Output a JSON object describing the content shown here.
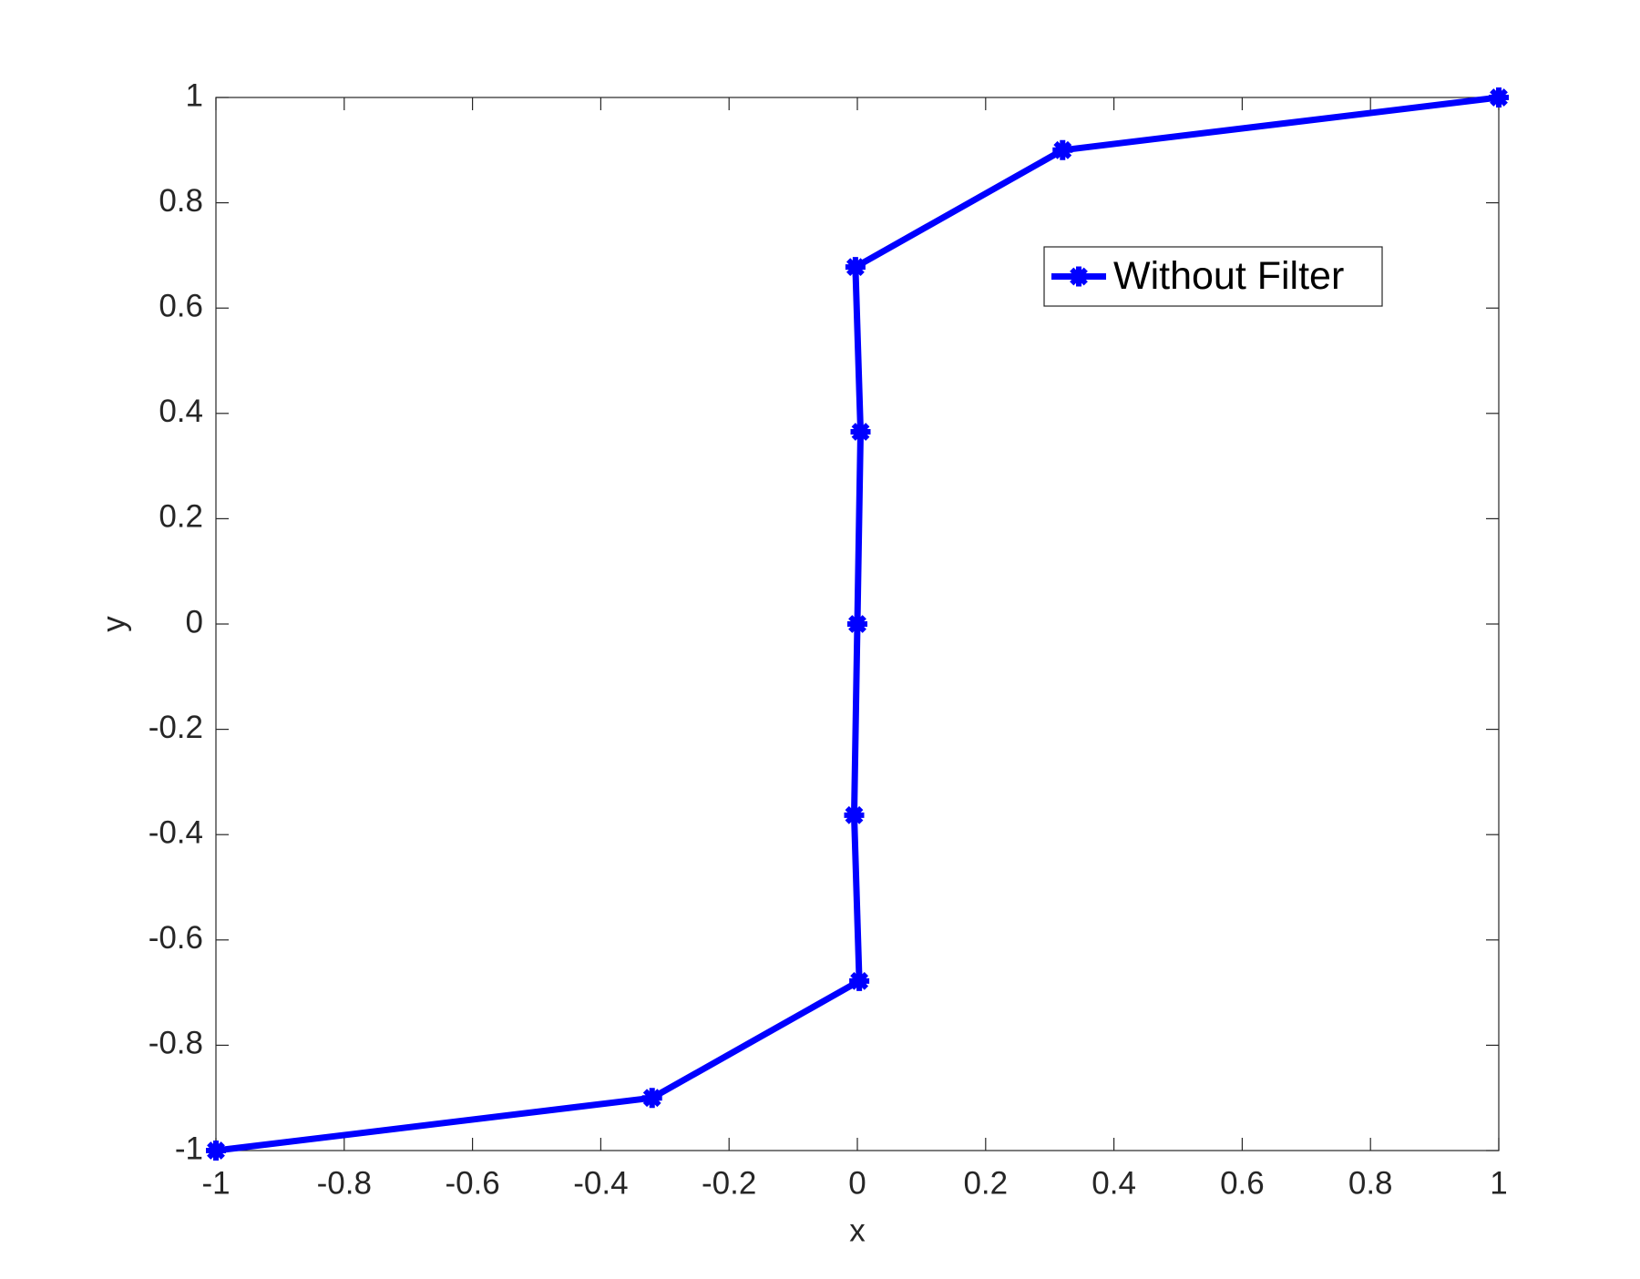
{
  "chart_data": {
    "type": "line",
    "xlabel": "x",
    "ylabel": "y",
    "x": [
      -1,
      -0.32,
      0.003,
      -0.005,
      0,
      0.005,
      -0.003,
      0.32,
      1
    ],
    "series": [
      {
        "name": "Without Filter",
        "color": "#0000ff",
        "values": [
          -1,
          -0.9,
          -0.678,
          -0.363,
          0,
          0.365,
          0.678,
          0.9,
          1
        ]
      }
    ],
    "xlim": [
      -1,
      1
    ],
    "ylim": [
      -1,
      1
    ],
    "xticks": [
      -1,
      -0.8,
      -0.6,
      -0.4,
      -0.2,
      0,
      0.2,
      0.4,
      0.6,
      0.8,
      1
    ],
    "yticks": [
      -1,
      -0.8,
      -0.6,
      -0.4,
      -0.2,
      0,
      0.2,
      0.4,
      0.6,
      0.8,
      1
    ],
    "grid": false,
    "legend": "upper right"
  }
}
